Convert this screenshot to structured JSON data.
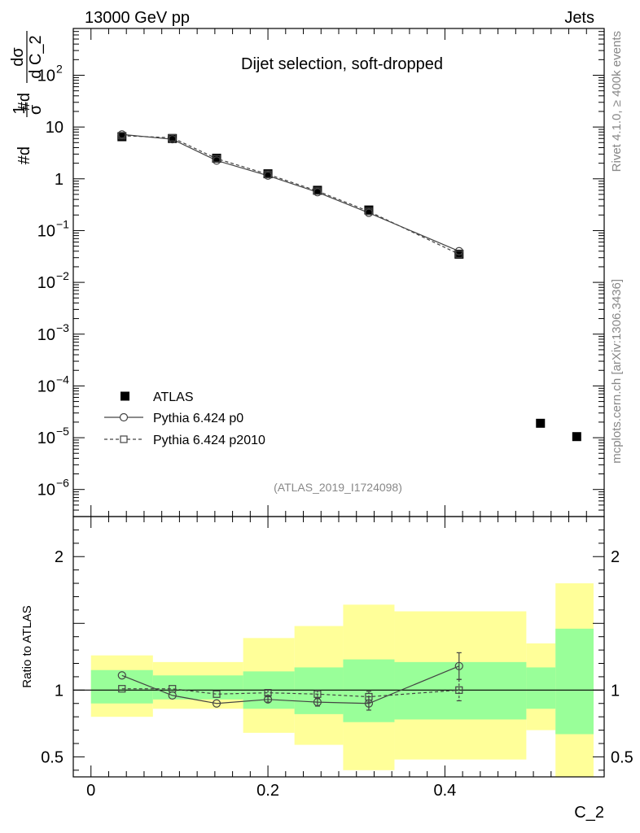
{
  "header": {
    "left": "13000 GeV pp",
    "right": "Jets",
    "plot_title": "Dijet selection, soft-dropped",
    "side_top": "Rivet 4.1.0, ≥ 400k events",
    "side_bottom": "mcplots.cern.ch [arXiv:1306.3436]",
    "analysis": "(ATLAS_2019_I1724098)"
  },
  "axes": {
    "ylabel_main": "#d 1/σ #dσ/d C_2",
    "ylabel_main_parts": {
      "p1": "#d",
      "f1num": "1",
      "f1den": "σ",
      "p2": "#d",
      "f2num": "dσ",
      "f2den": "d C_2"
    },
    "ylabel_ratio": "Ratio to ATLAS",
    "xlabel": "C_2",
    "x_ticks": [
      "0",
      "0.2",
      "0.4"
    ],
    "y_main_ticks": [
      {
        "v": 100,
        "b": "10",
        "e": "2"
      },
      {
        "v": 10,
        "b": "10",
        "e": ""
      },
      {
        "v": 1,
        "b": "1",
        "e": ""
      },
      {
        "v": 0.1,
        "b": "10",
        "e": "−1"
      },
      {
        "v": 0.01,
        "b": "10",
        "e": "−2"
      },
      {
        "v": 0.001,
        "b": "10",
        "e": "−3"
      },
      {
        "v": 0.0001,
        "b": "10",
        "e": "−4"
      },
      {
        "v": 1e-05,
        "b": "10",
        "e": "−5"
      },
      {
        "v": 1e-06,
        "b": "10",
        "e": "−6"
      }
    ],
    "y_ratio_ticks": [
      {
        "v": 2,
        "label": "2"
      },
      {
        "v": 1,
        "label": "1"
      },
      {
        "v": 0.5,
        "label": "0.5"
      }
    ]
  },
  "legend": [
    {
      "label": "ATLAS",
      "style": "square-filled"
    },
    {
      "label": "Pythia 6.424 p0",
      "style": "circle-solid"
    },
    {
      "label": "Pythia 6.424 p2010",
      "style": "square-dashed"
    }
  ],
  "colors": {
    "band_inner": "#99ff99",
    "band_outer": "#ffff99",
    "mc": "#444444",
    "data": "#000000"
  },
  "chart_data": [
    {
      "type": "scatter",
      "panel": "main",
      "title": "Dijet selection, soft-dropped",
      "xlabel": "C_2",
      "ylabel": "1/σ dσ/d C_2",
      "xlim": [
        -0.02,
        0.58
      ],
      "ylim": [
        3e-07,
        800
      ],
      "yscale": "log",
      "series": [
        {
          "name": "ATLAS",
          "x": [
            0.035,
            0.092,
            0.142,
            0.2,
            0.256,
            0.314,
            0.416,
            0.508,
            0.549
          ],
          "values": [
            6.5,
            6.0,
            2.5,
            1.25,
            0.6,
            0.25,
            0.035,
            1.9e-05,
            1.05e-05
          ]
        },
        {
          "name": "Pythia 6.424 p0",
          "x": [
            0.035,
            0.092,
            0.142,
            0.2,
            0.256,
            0.314,
            0.416
          ],
          "values": [
            7.2,
            5.8,
            2.25,
            1.15,
            0.55,
            0.22,
            0.04
          ]
        },
        {
          "name": "Pythia 6.424 p2010",
          "x": [
            0.035,
            0.092,
            0.142,
            0.2,
            0.256,
            0.314,
            0.416
          ],
          "values": [
            6.8,
            6.2,
            2.45,
            1.22,
            0.58,
            0.235,
            0.035
          ]
        }
      ]
    },
    {
      "type": "line",
      "panel": "ratio",
      "ylabel": "Ratio to ATLAS",
      "xlabel": "C_2",
      "xlim": [
        -0.02,
        0.58
      ],
      "ylim": [
        0.35,
        2.3
      ],
      "bins": [
        {
          "x0": 0.0,
          "x1": 0.07,
          "in_lo": 0.9,
          "in_hi": 1.15,
          "out_lo": 0.8,
          "out_hi": 1.26
        },
        {
          "x0": 0.07,
          "x1": 0.172,
          "in_lo": 0.93,
          "in_hi": 1.11,
          "out_lo": 0.86,
          "out_hi": 1.21
        },
        {
          "x0": 0.172,
          "x1": 0.23,
          "in_lo": 0.86,
          "in_hi": 1.14,
          "out_lo": 0.68,
          "out_hi": 1.39
        },
        {
          "x0": 0.23,
          "x1": 0.285,
          "in_lo": 0.82,
          "in_hi": 1.17,
          "out_lo": 0.59,
          "out_hi": 1.48
        },
        {
          "x0": 0.285,
          "x1": 0.343,
          "in_lo": 0.76,
          "in_hi": 1.23,
          "out_lo": 0.4,
          "out_hi": 1.64
        },
        {
          "x0": 0.343,
          "x1": 0.492,
          "in_lo": 0.78,
          "in_hi": 1.21,
          "out_lo": 0.48,
          "out_hi": 1.59
        },
        {
          "x0": 0.492,
          "x1": 0.525,
          "in_lo": 0.86,
          "in_hi": 1.17,
          "out_lo": 0.7,
          "out_hi": 1.35
        },
        {
          "x0": 0.525,
          "x1": 0.568,
          "in_lo": 0.67,
          "in_hi": 1.46,
          "out_lo": 0.35,
          "out_hi": 1.8
        }
      ],
      "series": [
        {
          "name": "Pythia 6.424 p0",
          "x": [
            0.035,
            0.092,
            0.142,
            0.2,
            0.256,
            0.314,
            0.416
          ],
          "values": [
            1.11,
            0.96,
            0.9,
            0.93,
            0.91,
            0.9,
            1.18
          ],
          "errors": [
            0.0,
            0.0,
            0.0,
            0.02,
            0.03,
            0.05,
            0.1
          ]
        },
        {
          "name": "Pythia 6.424 p2010",
          "x": [
            0.035,
            0.092,
            0.142,
            0.2,
            0.256,
            0.314,
            0.416
          ],
          "values": [
            1.01,
            1.01,
            0.97,
            0.98,
            0.97,
            0.95,
            1.0
          ],
          "errors": [
            0.0,
            0.0,
            0.0,
            0.02,
            0.03,
            0.04,
            0.08
          ]
        }
      ]
    }
  ]
}
